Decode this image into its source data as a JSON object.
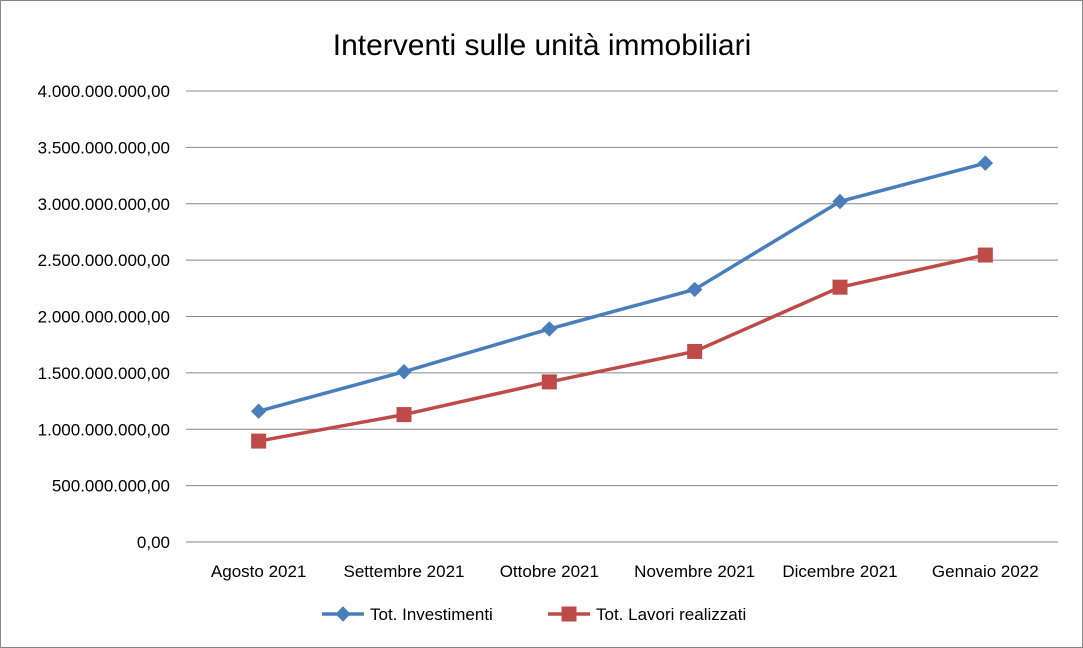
{
  "chart_data": {
    "type": "line",
    "title": "Interventi sulle unità immobiliari",
    "categories": [
      "Agosto 2021",
      "Settembre 2021",
      "Ottobre 2021",
      "Novembre 2021",
      "Dicembre 2021",
      "Gennaio 2022"
    ],
    "ylim": [
      0,
      4000000000
    ],
    "y_ticks": [
      {
        "value": 0,
        "label": "0,00"
      },
      {
        "value": 500000000,
        "label": "500.000.000,00"
      },
      {
        "value": 1000000000,
        "label": "1.000.000.000,00"
      },
      {
        "value": 1500000000,
        "label": "1.500.000.000,00"
      },
      {
        "value": 2000000000,
        "label": "2.000.000.000,00"
      },
      {
        "value": 2500000000,
        "label": "2.500.000.000,00"
      },
      {
        "value": 3000000000,
        "label": "3.000.000.000,00"
      },
      {
        "value": 3500000000,
        "label": "3.500.000.000,00"
      },
      {
        "value": 4000000000,
        "label": "4.000.000.000,00"
      }
    ],
    "grid": true,
    "legend_position": "bottom",
    "series": [
      {
        "name": "Tot. Investimenti",
        "color": "#4a7ebb",
        "marker": "diamond",
        "values": [
          1160000000,
          1510000000,
          1890000000,
          2240000000,
          3020000000,
          3360000000
        ]
      },
      {
        "name": "Tot. Lavori realizzati",
        "color": "#be4b48",
        "marker": "square",
        "values": [
          895000000,
          1130000000,
          1420000000,
          1690000000,
          2260000000,
          2545000000
        ]
      }
    ]
  }
}
